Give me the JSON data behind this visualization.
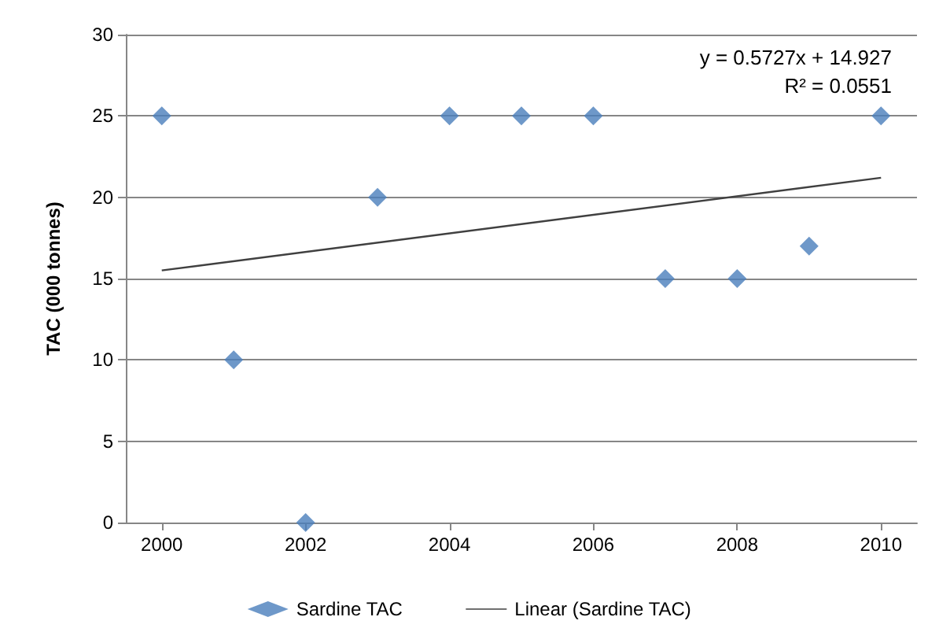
{
  "chart_data": {
    "type": "scatter",
    "ylabel": "TAC (000 tonnes)",
    "x": [
      2000,
      2001,
      2002,
      2003,
      2004,
      2005,
      2006,
      2007,
      2008,
      2009,
      2010
    ],
    "series": [
      {
        "name": "Sardine TAC",
        "color": "#4a7ebb",
        "marker": "diamond",
        "values": [
          25,
          10,
          0,
          20,
          25,
          25,
          25,
          15,
          15,
          17,
          25
        ]
      },
      {
        "name": "Linear (Sardine TAC)",
        "type": "line",
        "color": "#404040",
        "x": [
          2000,
          2010
        ],
        "values": [
          15.5,
          21.2
        ]
      }
    ],
    "xlim": [
      1999.5,
      2010.5
    ],
    "xticks": [
      2000,
      2002,
      2004,
      2006,
      2008,
      2010
    ],
    "ylim": [
      0,
      30
    ],
    "yticks": [
      0,
      5,
      10,
      15,
      20,
      25,
      30
    ],
    "grid": "y",
    "legend": "bottom",
    "annotations": [
      "y = 0.5727x + 14.927",
      "R² = 0.0551"
    ]
  }
}
